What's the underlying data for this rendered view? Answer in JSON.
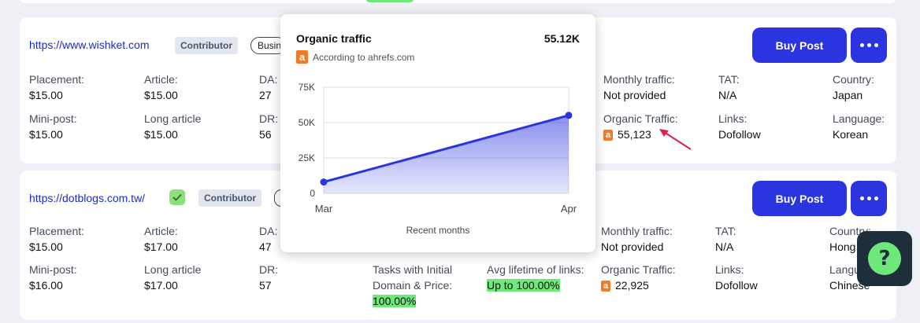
{
  "row1": {
    "url": "https://www.wishket.com",
    "badge": "Contributor",
    "chip": "Business",
    "buy": "Buy Post",
    "placement_label": "Placement:",
    "placement_value": "$15.00",
    "article_label": "Article:",
    "article_value": "$15.00",
    "da_label": "DA:",
    "da_value": "27",
    "mini_label": "Mini-post:",
    "mini_value": "$15.00",
    "long_label": "Long article",
    "long_value": "$15.00",
    "dr_label": "DR:",
    "dr_value": "56",
    "monthly_label": "Monthly traffic:",
    "monthly_value": "Not provided",
    "tat_label": "TAT:",
    "tat_value": "N/A",
    "country_label": "Country:",
    "country_value": "Japan",
    "organic_label": "Organic Traffic:",
    "organic_value": "55,123",
    "links_label": "Links:",
    "links_value": "Dofollow",
    "language_label": "Language:",
    "language_value": "Korean"
  },
  "row2": {
    "url": "https://dotblogs.com.tw/",
    "badge": "Contributor",
    "buy": "Buy Post",
    "placement_label": "Placement:",
    "placement_value": "$15.00",
    "article_label": "Article:",
    "article_value": "$17.00",
    "da_label": "DA:",
    "da_value": "47",
    "mini_label": "Mini-post:",
    "mini_value": "$16.00",
    "long_label": "Long article",
    "long_value": "$17.00",
    "dr_label": "DR:",
    "dr_value": "57",
    "tasks_label_1": "Tasks with Initial",
    "tasks_label_2": "Domain & Price:",
    "tasks_value": "100.00%",
    "avg_label": "Avg lifetime of links:",
    "avg_value": "Up to 100.00%",
    "monthly_label": "Monthly traffic:",
    "monthly_value": "Not provided",
    "tat_label": "TAT:",
    "tat_value": "N/A",
    "country_label": "Country:",
    "country_value": "Hong Kong",
    "organic_label": "Organic Traffic:",
    "organic_value": "22,925",
    "links_label": "Links:",
    "links_value": "Dofollow",
    "language_label": "Language:",
    "language_value": "Chinese"
  },
  "tooltip": {
    "title": "Organic traffic",
    "total": "55.12K",
    "source": "According to ahrefs.com",
    "ahrefs_letter": "a"
  },
  "chart_data": {
    "type": "area",
    "categories": [
      "Mar",
      "Apr"
    ],
    "series": [
      {
        "values": [
          8000,
          55123
        ]
      }
    ],
    "y_ticks": [
      "0",
      "25K",
      "50K",
      "75K"
    ],
    "ylim": [
      0,
      75000
    ],
    "xlabel": "Recent months",
    "color": "#2a35e0"
  },
  "icons": {
    "help": "?",
    "verified": "check-icon",
    "more": "more-dots-icon"
  },
  "colors": {
    "accent": "#2a35e0",
    "highlight": "#6ee87a",
    "ahrefs": "#f27a25"
  }
}
